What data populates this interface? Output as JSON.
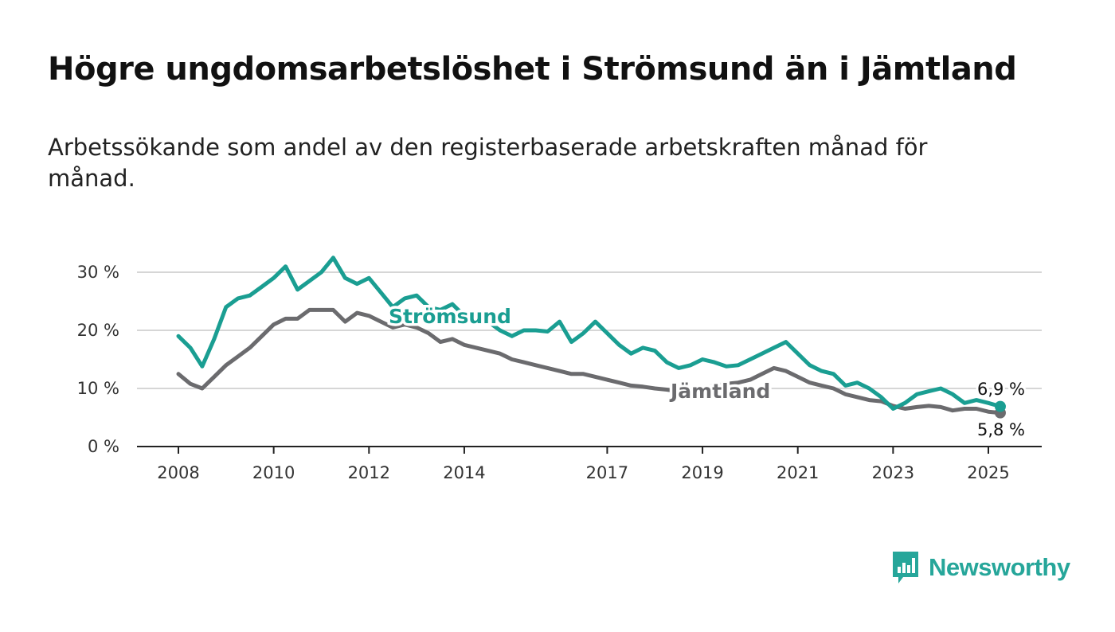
{
  "title": "Högre ungdomsarbetslöshet i Strömsund än i Jämtland",
  "subtitle": "Arbetssökande som andel av den registerbaserade arbetskraften månad för månad.",
  "brand": {
    "name": "Newsworthy",
    "color": "#26a69a",
    "logo_icon": "bar-chart-speech-bubble-icon"
  },
  "chart_data": {
    "type": "line",
    "xlabel": "",
    "ylabel": "",
    "ylim": [
      0,
      30
    ],
    "xlim": [
      2008.0,
      2025.3
    ],
    "y_ticks": [
      0,
      10,
      20,
      30
    ],
    "y_tick_labels": [
      "0 %",
      "10 %",
      "20 %",
      "30 %"
    ],
    "x_ticks": [
      2008,
      2010,
      2012,
      2014,
      2017,
      2019,
      2021,
      2023,
      2025
    ],
    "x_tick_labels": [
      "2008",
      "2010",
      "2012",
      "2014",
      "2017",
      "2019",
      "2021",
      "2023",
      "2025"
    ],
    "grid": true,
    "x": [
      2008.0,
      2008.25,
      2008.5,
      2008.75,
      2009.0,
      2009.25,
      2009.5,
      2009.75,
      2010.0,
      2010.25,
      2010.5,
      2010.75,
      2011.0,
      2011.25,
      2011.5,
      2011.75,
      2012.0,
      2012.25,
      2012.5,
      2012.75,
      2013.0,
      2013.25,
      2013.5,
      2013.75,
      2014.0,
      2014.25,
      2014.5,
      2014.75,
      2015.0,
      2015.25,
      2015.5,
      2015.75,
      2016.0,
      2016.25,
      2016.5,
      2016.75,
      2017.0,
      2017.25,
      2017.5,
      2017.75,
      2018.0,
      2018.25,
      2018.5,
      2018.75,
      2019.0,
      2019.25,
      2019.5,
      2019.75,
      2020.0,
      2020.25,
      2020.5,
      2020.75,
      2021.0,
      2021.25,
      2021.5,
      2021.75,
      2022.0,
      2022.25,
      2022.5,
      2022.75,
      2023.0,
      2023.25,
      2023.5,
      2023.75,
      2024.0,
      2024.25,
      2024.5,
      2024.75,
      2025.0,
      2025.25
    ],
    "series": [
      {
        "name": "Strömsund",
        "color": "#1a9e92",
        "values": [
          19.0,
          17.0,
          13.8,
          18.5,
          24.0,
          25.5,
          26.0,
          27.5,
          29.0,
          31.0,
          27.0,
          28.5,
          30.0,
          32.5,
          29.0,
          28.0,
          29.0,
          26.5,
          24.0,
          25.5,
          26.0,
          24.0,
          23.5,
          24.5,
          22.5,
          23.0,
          21.5,
          20.0,
          19.0,
          20.0,
          20.0,
          19.8,
          21.5,
          18.0,
          19.5,
          21.5,
          19.5,
          17.5,
          16.0,
          17.0,
          16.5,
          14.5,
          13.5,
          14.0,
          15.0,
          14.5,
          13.8,
          14.0,
          15.0,
          16.0,
          17.0,
          18.0,
          16.0,
          14.0,
          13.0,
          12.5,
          10.5,
          11.0,
          10.0,
          8.5,
          6.5,
          7.5,
          9.0,
          9.5,
          10.0,
          9.0,
          7.5,
          8.0,
          7.5,
          6.9
        ]
      },
      {
        "name": "Jämtland",
        "color": "#6b6b6e",
        "values": [
          12.5,
          10.8,
          10.0,
          12.0,
          14.0,
          15.5,
          17.0,
          19.0,
          21.0,
          22.0,
          22.0,
          23.5,
          23.5,
          23.5,
          21.5,
          23.0,
          22.5,
          21.5,
          20.5,
          21.0,
          20.5,
          19.5,
          18.0,
          18.5,
          17.5,
          17.0,
          16.5,
          16.0,
          15.0,
          14.5,
          14.0,
          13.5,
          13.0,
          12.5,
          12.5,
          12.0,
          11.5,
          11.0,
          10.5,
          10.3,
          10.0,
          9.8,
          9.5,
          9.8,
          10.0,
          10.5,
          10.8,
          11.0,
          11.5,
          12.5,
          13.5,
          13.0,
          12.0,
          11.0,
          10.5,
          10.0,
          9.0,
          8.5,
          8.0,
          7.8,
          7.0,
          6.5,
          6.8,
          7.0,
          6.8,
          6.2,
          6.5,
          6.5,
          6.0,
          5.8
        ]
      }
    ],
    "end_labels": [
      "6,9 %",
      "5,8 %"
    ]
  }
}
